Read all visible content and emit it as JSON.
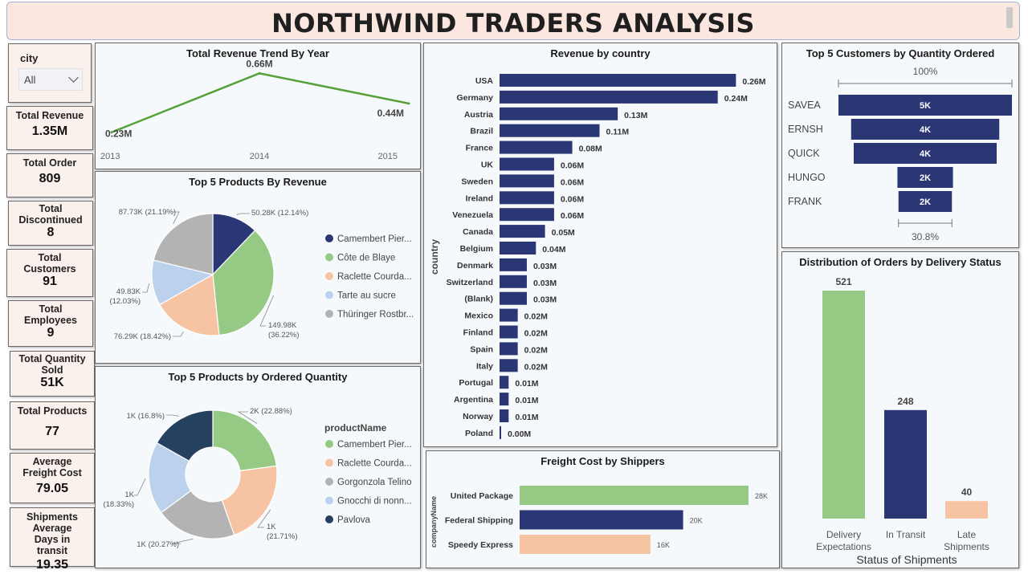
{
  "dashboard": {
    "title": "NORTHWIND TRADERS ANALYSIS"
  },
  "slicer": {
    "label": "city",
    "value": "All"
  },
  "kpis": [
    {
      "label": "Total Revenue",
      "value": "1.35M"
    },
    {
      "label": "Total Order",
      "value": "809"
    },
    {
      "label": "Total Discontinued",
      "value": "8"
    },
    {
      "label": "Total Customers",
      "value": "91"
    },
    {
      "label": "Total Employees",
      "value": "9"
    },
    {
      "label": "Total Quantity Sold",
      "value": "51K"
    },
    {
      "label": "Total Products",
      "value": "77"
    },
    {
      "label": "Average Freight Cost",
      "value": "79.05"
    },
    {
      "label": "Shipments Average Days in transit",
      "value": "19.35"
    }
  ],
  "colors": {
    "navy": "#2b3674",
    "green": "#96c983",
    "peach": "#f6c4a3",
    "gray": "#b3b3b3",
    "lightblue": "#bcd2ec",
    "darknavy": "#26405f",
    "line": "#56a13a"
  },
  "chart_data": [
    {
      "type": "line",
      "title": "Total Revenue Trend By Year",
      "x": [
        "2013",
        "2014",
        "2015"
      ],
      "series": [
        {
          "values": [
            0.23,
            0.66,
            0.44
          ],
          "labels": [
            "0.23M",
            "0.66M",
            "0.44M"
          ]
        }
      ],
      "ylim": [
        0,
        0.75
      ]
    },
    {
      "type": "pie",
      "title": "Top 5 Products By Revenue",
      "legend": [
        {
          "name": "Camembert Pier...",
          "color": "#2b3674"
        },
        {
          "name": "Côte de Blaye",
          "color": "#96c983"
        },
        {
          "name": "Raclette Courda...",
          "color": "#f6c4a3"
        },
        {
          "name": "Tarte au sucre",
          "color": "#bcd2ec"
        },
        {
          "name": "Thüringer Rostbr...",
          "color": "#b3b3b3"
        }
      ],
      "slices": [
        {
          "value": 12.14,
          "label": "50.28K (12.14%)",
          "color": "#2b3674"
        },
        {
          "value": 36.22,
          "label": "149.98K (36.22%)",
          "color": "#96c983"
        },
        {
          "value": 18.42,
          "label": "76.29K (18.42%)",
          "color": "#f6c4a3"
        },
        {
          "value": 12.03,
          "label": "49.83K (12.03%)",
          "color": "#bcd2ec"
        },
        {
          "value": 21.19,
          "label": "87.73K (21.19%)",
          "color": "#b3b3b3"
        }
      ]
    },
    {
      "type": "pie",
      "title": "Top 5 Products by Ordered Quantity",
      "legend_title": "productName",
      "legend": [
        {
          "name": "Camembert Pier...",
          "color": "#96c983"
        },
        {
          "name": "Raclette Courda...",
          "color": "#f6c4a3"
        },
        {
          "name": "Gorgonzola Telino",
          "color": "#b3b3b3"
        },
        {
          "name": "Gnocchi di nonn...",
          "color": "#bcd2ec"
        },
        {
          "name": "Pavlova",
          "color": "#26405f"
        }
      ],
      "slices": [
        {
          "value": 22.88,
          "label": "2K (22.88%)",
          "color": "#96c983"
        },
        {
          "value": 21.71,
          "label": "1K (21.71%)",
          "color": "#f6c4a3"
        },
        {
          "value": 20.27,
          "label": "1K (20.27%)",
          "color": "#b3b3b3"
        },
        {
          "value": 18.33,
          "label": "1K (18.33%)",
          "color": "#bcd2ec"
        },
        {
          "value": 16.8,
          "label": "1K (16.8%)",
          "color": "#26405f"
        }
      ]
    },
    {
      "type": "bar",
      "title": "Revenue by country",
      "ylabel": "country",
      "categories": [
        "USA",
        "Germany",
        "Austria",
        "Brazil",
        "France",
        "UK",
        "Sweden",
        "Ireland",
        "Venezuela",
        "Canada",
        "Belgium",
        "Denmark",
        "Switzerland",
        "(Blank)",
        "Mexico",
        "Finland",
        "Spain",
        "Italy",
        "Portugal",
        "Argentina",
        "Norway",
        "Poland"
      ],
      "values": [
        0.26,
        0.24,
        0.13,
        0.11,
        0.08,
        0.06,
        0.06,
        0.06,
        0.06,
        0.05,
        0.04,
        0.03,
        0.03,
        0.03,
        0.02,
        0.02,
        0.02,
        0.02,
        0.01,
        0.01,
        0.01,
        0.0
      ],
      "labels": [
        "0.26M",
        "0.24M",
        "0.13M",
        "0.11M",
        "0.08M",
        "0.06M",
        "0.06M",
        "0.06M",
        "0.06M",
        "0.05M",
        "0.04M",
        "0.03M",
        "0.03M",
        "0.03M",
        "0.02M",
        "0.02M",
        "0.02M",
        "0.02M",
        "0.01M",
        "0.01M",
        "0.01M",
        "0.00M"
      ],
      "xlim": [
        0,
        0.265
      ]
    },
    {
      "type": "bar",
      "title": "Freight Cost by Shippers",
      "ylabel": "companyName",
      "categories": [
        "United Package",
        "Federal Shipping",
        "Speedy Express"
      ],
      "values": [
        28,
        20,
        16
      ],
      "labels": [
        "28K",
        "20K",
        "16K"
      ],
      "colors": [
        "#96c983",
        "#2b3674",
        "#f6c4a3"
      ],
      "xlim": [
        0,
        28
      ]
    },
    {
      "type": "bar",
      "title": "Top 5 Customers by Quantity Ordered",
      "subtype": "funnel",
      "categories": [
        "SAVEA",
        "ERNSH",
        "QUICK",
        "HUNGO",
        "FRANK"
      ],
      "values": [
        100,
        85.4,
        82.4,
        32,
        30.8
      ],
      "labels": [
        "5K",
        "4K",
        "4K",
        "2K",
        "2K"
      ],
      "top_label": "100%",
      "bottom_label": "30.8%"
    },
    {
      "type": "bar",
      "title": "Distribution of Orders by Delivery Status",
      "xlabel": "Status of Shipments",
      "categories": [
        "Delivery Expectations",
        "In Transit",
        "Late Shipments"
      ],
      "category_lines": [
        [
          "Delivery",
          "Expectations"
        ],
        [
          "In Transit"
        ],
        [
          "Late",
          "Shipments"
        ]
      ],
      "values": [
        521,
        248,
        40
      ],
      "labels": [
        "521",
        "248",
        "40"
      ],
      "colors": [
        "#96c983",
        "#2b3674",
        "#f6c4a3"
      ],
      "ylim": [
        0,
        521
      ]
    }
  ]
}
